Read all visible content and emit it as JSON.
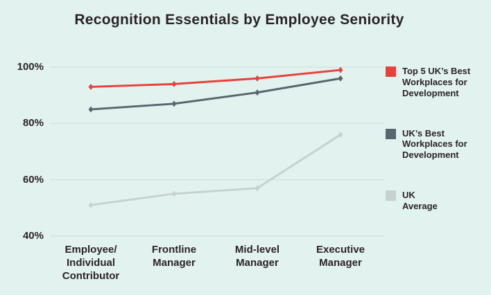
{
  "title": "Recognition Essentials by Employee Seniority",
  "colors": {
    "background": "#e2f2ef",
    "text": "#2b2326",
    "gridline": "#ccdcd8",
    "red_series": "#e8413a",
    "slate_series": "#57666f",
    "light_series": "#c6d1d2"
  },
  "chart_data": {
    "type": "line",
    "title": "Recognition Essentials by Employee Seniority",
    "xlabel": "",
    "ylabel": "",
    "ylim": [
      38,
      104
    ],
    "grid": true,
    "legend_position": "right",
    "categories": [
      "Employee/\nIndividual\nContributor",
      "Frontline\nManager",
      "Mid-level\nManager",
      "Executive\nManager"
    ],
    "yticks": [
      {
        "label": "100%",
        "value": 100
      },
      {
        "label": "80%",
        "value": 80
      },
      {
        "label": "60%",
        "value": 60
      },
      {
        "label": "40%",
        "value": 40
      }
    ],
    "series": [
      {
        "id": "top5-uk-best",
        "name": "Top 5 UK’s Best\nWorkplaces for\nDevelopment",
        "color": "#e8413a",
        "values": [
          93,
          94,
          96,
          99
        ]
      },
      {
        "id": "uk-best",
        "name": "UK’s Best\nWorkplaces for\nDevelopment",
        "color": "#57666f",
        "values": [
          85,
          87,
          91,
          96
        ]
      },
      {
        "id": "uk-average",
        "name": "UK\nAverage",
        "color": "#c6d1d2",
        "values": [
          51,
          55,
          57,
          76
        ]
      }
    ]
  }
}
